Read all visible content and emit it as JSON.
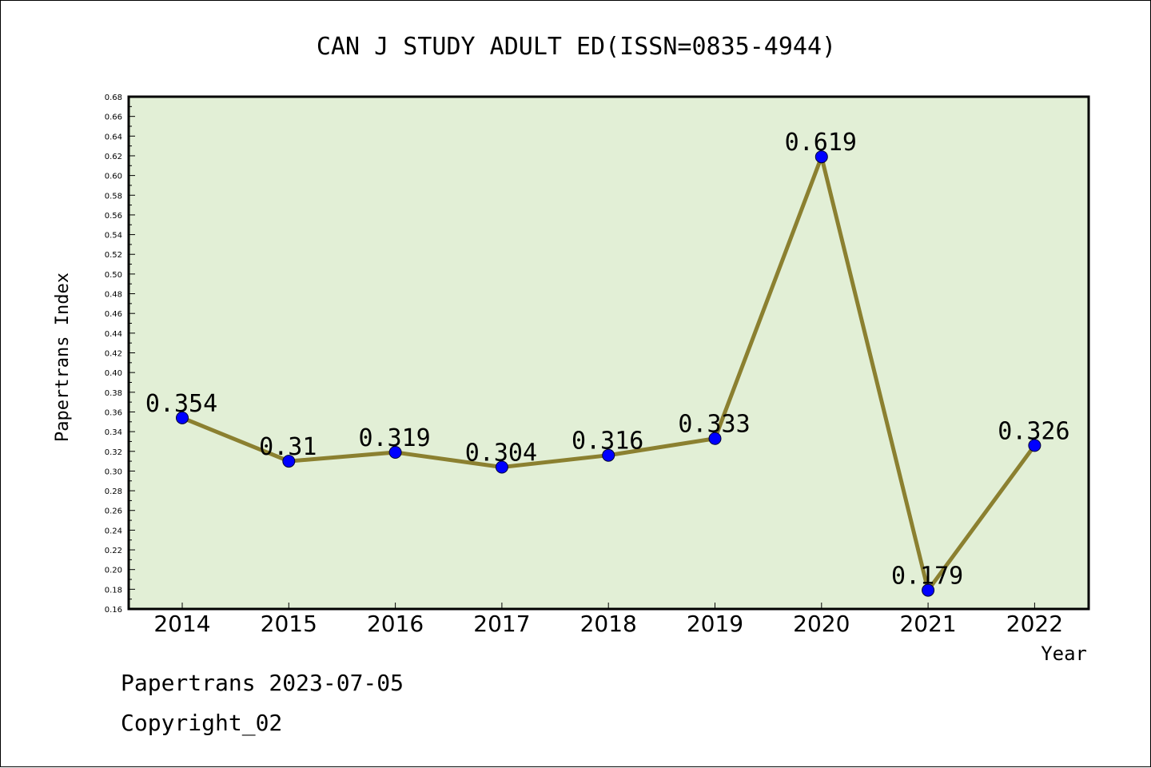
{
  "chart_data": {
    "type": "line",
    "title": "CAN J STUDY ADULT ED(ISSN=0835-4944)",
    "xlabel": "Year",
    "ylabel": "Papertrans Index",
    "categories": [
      "2014",
      "2015",
      "2016",
      "2017",
      "2018",
      "2019",
      "2020",
      "2021",
      "2022"
    ],
    "series": [
      {
        "values": [
          0.354,
          0.31,
          0.319,
          0.304,
          0.316,
          0.333,
          0.619,
          0.179,
          0.326
        ],
        "labels": [
          "0.354",
          "0.31",
          "0.319",
          "0.304",
          "0.316",
          "0.333",
          "0.619",
          "0.179",
          "0.326"
        ],
        "line_color": "#8b8030",
        "marker_color": "#0000ff"
      }
    ],
    "ylim": [
      0.16,
      0.68
    ],
    "ytick_step": 0.02,
    "plot_background": "#e2efd6",
    "grid": false
  },
  "footer": {
    "line1": "Papertrans 2023-07-05",
    "line2": "Copyright_02"
  }
}
